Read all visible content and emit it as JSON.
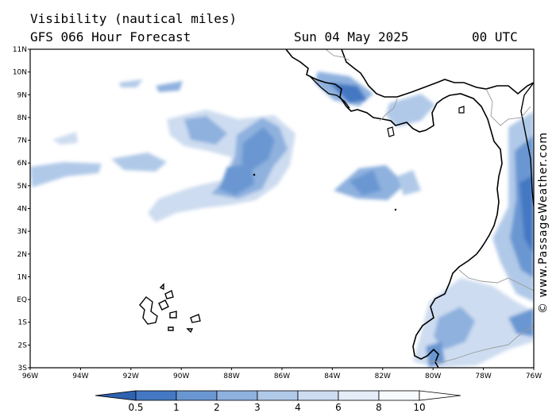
{
  "header": {
    "title": "Visibility (nautical miles)",
    "model": "GFS 066 Hour Forecast",
    "date": "Sun 04 May 2025",
    "time": "00 UTC"
  },
  "credit": "© www.PassageWeather.com",
  "axes": {
    "lat_labels": [
      "11N",
      "10N",
      "9N",
      "8N",
      "7N",
      "6N",
      "5N",
      "4N",
      "3N",
      "2N",
      "1N",
      "EQ",
      "1S",
      "2S",
      "3S"
    ],
    "lon_labels": [
      "96W",
      "94W",
      "92W",
      "90W",
      "88W",
      "86W",
      "84W",
      "82W",
      "80W",
      "78W",
      "76W"
    ],
    "lat_range": [
      -3,
      11
    ],
    "lon_range": [
      -96,
      -76
    ]
  },
  "colorbar": {
    "labels": [
      "0.5",
      "1",
      "2",
      "3",
      "4",
      "6",
      "8",
      "10"
    ],
    "colors": [
      "#2f62b0",
      "#4478c2",
      "#6a97d2",
      "#8eb1de",
      "#b0c9e8",
      "#cddcf0",
      "#e4edf8",
      "#f7fafd",
      "#ffffff"
    ]
  },
  "colors": {
    "land_outline": "#000000",
    "border": "#9a9a9a",
    "frame": "#000000"
  }
}
